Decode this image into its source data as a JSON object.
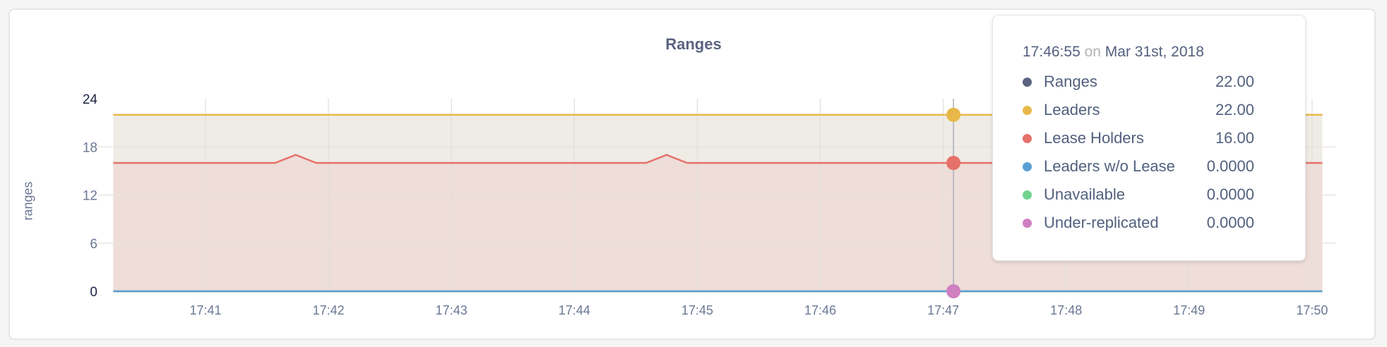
{
  "chart_data": {
    "type": "area",
    "title": "Ranges",
    "ylabel": "ranges",
    "xlabel": "",
    "ylim": [
      0,
      24
    ],
    "yticks": [
      "0",
      "6",
      "12",
      "18",
      "24"
    ],
    "xlim": [
      "17:40:15",
      "17:50:05"
    ],
    "xticks": [
      "17:41",
      "17:42",
      "17:43",
      "17:44",
      "17:45",
      "17:46",
      "17:47",
      "17:48",
      "17:49",
      "17:50"
    ],
    "grid": true,
    "series": [
      {
        "name": "Ranges",
        "color": "#5b6480",
        "points": [
          [
            "17:40:15",
            22
          ],
          [
            "17:50:05",
            22
          ]
        ]
      },
      {
        "name": "Leaders",
        "color": "#e8b84a",
        "fill": "#efebe5",
        "points": [
          [
            "17:40:15",
            22
          ],
          [
            "17:50:05",
            22
          ]
        ]
      },
      {
        "name": "Lease Holders",
        "color": "#e5716a",
        "fill": "#eeddd8",
        "points": [
          [
            "17:40:15",
            16
          ],
          [
            "17:41:34",
            16
          ],
          [
            "17:41:44",
            17
          ],
          [
            "17:41:54",
            16
          ],
          [
            "17:44:35",
            16
          ],
          [
            "17:44:45",
            17
          ],
          [
            "17:44:55",
            16
          ],
          [
            "17:50:05",
            16
          ]
        ]
      },
      {
        "name": "Leaders w/o Lease",
        "color": "#5b9fd4",
        "points": [
          [
            "17:40:15",
            0
          ],
          [
            "17:50:05",
            0
          ]
        ]
      },
      {
        "name": "Unavailable",
        "color": "#72d38f",
        "points": [
          [
            "17:40:15",
            0
          ],
          [
            "17:50:05",
            0
          ]
        ]
      },
      {
        "name": "Under-replicated",
        "color": "#d07fc0",
        "points": [
          [
            "17:40:15",
            0
          ],
          [
            "17:50:05",
            0
          ]
        ]
      }
    ],
    "hover": {
      "time": "17:47:05"
    }
  },
  "tooltip": {
    "time": "17:46:55",
    "on": "on",
    "date": "Mar 31st, 2018",
    "rows": [
      {
        "name": "Ranges",
        "value": "22.00",
        "color": "#5b6480"
      },
      {
        "name": "Leaders",
        "value": "22.00",
        "color": "#e8b84a"
      },
      {
        "name": "Lease Holders",
        "value": "16.00",
        "color": "#e5716a"
      },
      {
        "name": "Leaders w/o Lease",
        "value": "0.0000",
        "color": "#5b9fd4"
      },
      {
        "name": "Unavailable",
        "value": "0.0000",
        "color": "#72d38f"
      },
      {
        "name": "Under-replicated",
        "value": "0.0000",
        "color": "#d07fc0"
      }
    ]
  }
}
